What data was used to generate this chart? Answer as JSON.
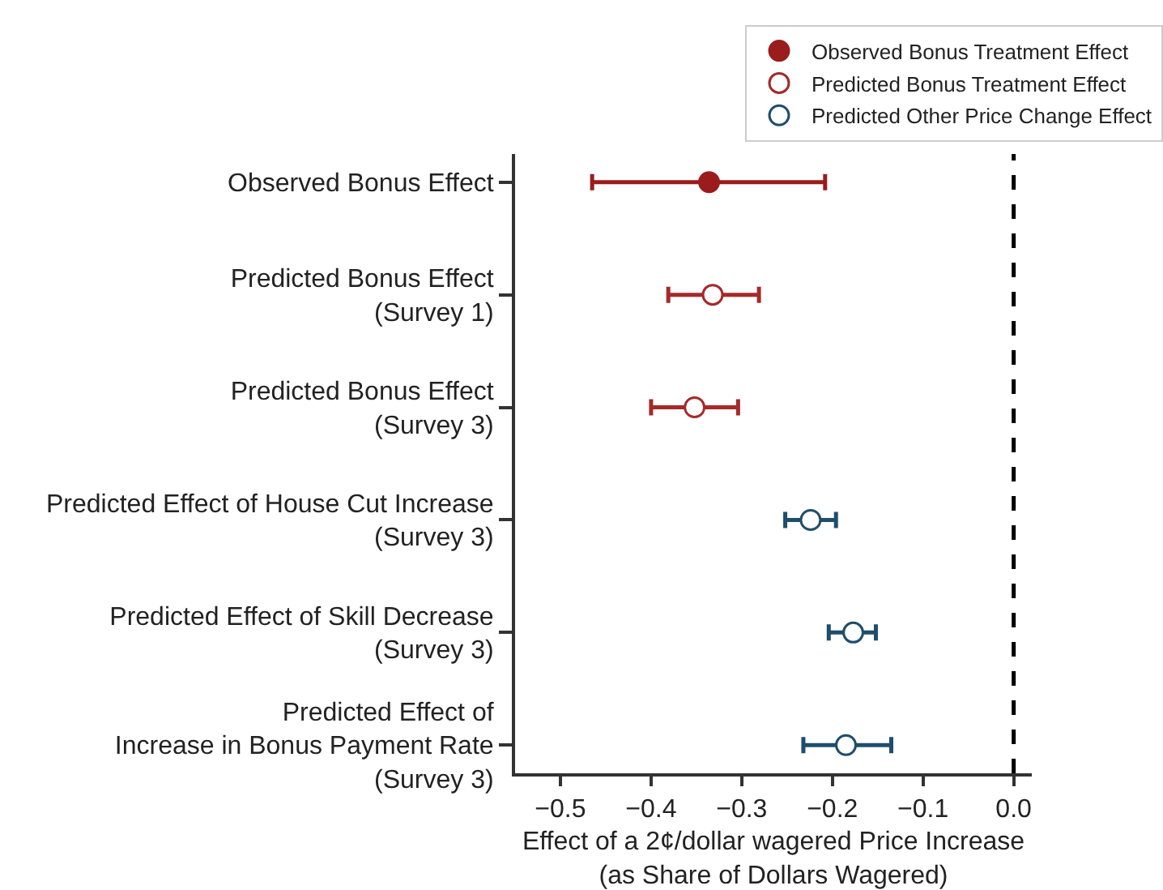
{
  "chart_data": {
    "type": "scatter",
    "orientation": "horizontal",
    "xlabel": "Effect of a 2¢/dollar wagered Price Increase\n(as Share of Dollars Wagered)",
    "categories": [
      "Observed Bonus Effect",
      "Predicted Bonus Effect\n(Survey 1)",
      "Predicted Bonus Effect\n(Survey 3)",
      "Predicted Effect of House Cut Increase\n(Survey 3)",
      "Predicted Effect of Skill Decrease\n(Survey 3)",
      "Predicted Effect of\nIncrease in Bonus Payment Rate\n(Survey 3)"
    ],
    "series": [
      {
        "name": "Observed Bonus Treatment Effect",
        "color": "#9b1c1c",
        "values": [
          -0.336,
          null,
          null,
          null,
          null,
          null
        ],
        "errors": [
          [
            -0.465,
            -0.208
          ],
          null,
          null,
          null,
          null,
          null
        ]
      },
      {
        "name": "Predicted Bonus Treatment Effect",
        "color": "#a52a2a",
        "values": [
          null,
          -0.332,
          -0.352,
          null,
          null,
          null
        ],
        "errors": [
          null,
          [
            -0.381,
            -0.281
          ],
          [
            -0.4,
            -0.304
          ],
          null,
          null,
          null
        ]
      },
      {
        "name": "Predicted Other Price Change Effect",
        "color": "#1f4e6b",
        "values": [
          null,
          null,
          null,
          -0.224,
          -0.177,
          -0.185
        ],
        "errors": [
          null,
          null,
          null,
          [
            -0.252,
            -0.196
          ],
          [
            -0.204,
            -0.152
          ],
          [
            -0.232,
            -0.135
          ]
        ]
      }
    ],
    "xlim": [
      -0.55,
      0.02
    ],
    "xticks": [
      {
        "value": -0.5,
        "label": "−0.5"
      },
      {
        "value": -0.4,
        "label": "−0.4"
      },
      {
        "value": -0.3,
        "label": "−0.3"
      },
      {
        "value": -0.2,
        "label": "−0.2"
      },
      {
        "value": -0.1,
        "label": "−0.1"
      },
      {
        "value": 0,
        "label": "0.0"
      }
    ],
    "ref_lines": [
      {
        "axis": "x",
        "value": 0,
        "color": "#000000",
        "line_style": "dashed"
      }
    ],
    "grid": false,
    "legend": "top",
    "marker": "circle"
  }
}
